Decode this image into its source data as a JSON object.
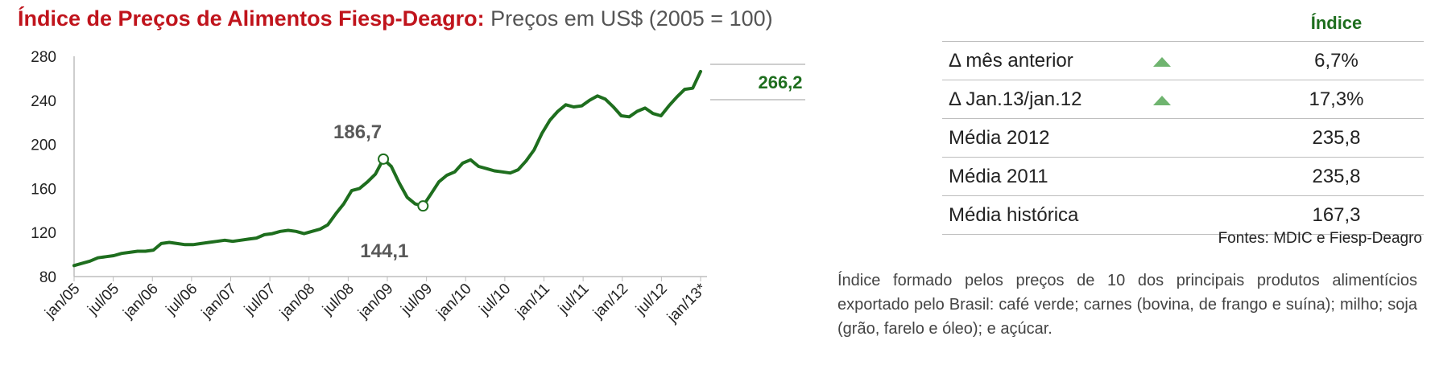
{
  "title": {
    "main": "Índice de Preços de Alimentos Fiesp-Deagro:",
    "sub": "Preços em US$ (2005 = 100)"
  },
  "chart_data": {
    "type": "line",
    "title": "Índice de Preços de Alimentos Fiesp-Deagro: Preços em US$ (2005 = 100)",
    "xlabel": "",
    "ylabel": "",
    "ylim": [
      80,
      280
    ],
    "yticks": [
      80,
      120,
      160,
      200,
      240,
      280
    ],
    "xticks": [
      "jan/05",
      "jul/05",
      "jan/06",
      "jul/06",
      "jan/07",
      "jul/07",
      "jan/08",
      "jul/08",
      "jan/09",
      "jul/09",
      "jan/10",
      "jul/10",
      "jan/11",
      "jul/11",
      "jan/12",
      "jul/12",
      "jan/13*"
    ],
    "grid": false,
    "color": "#1e6e1e",
    "series": [
      {
        "values": [
          90,
          92,
          94,
          97,
          98,
          99,
          101,
          102,
          103,
          103,
          104,
          110,
          111,
          110,
          109,
          109,
          110,
          111,
          112,
          113,
          112,
          113,
          114,
          115,
          118,
          119,
          121,
          122,
          121,
          119,
          121,
          123,
          127,
          137,
          146,
          158,
          160,
          166,
          173,
          186.7,
          180,
          165,
          152,
          146,
          144.1,
          155,
          166,
          172,
          175,
          183,
          186,
          180,
          178,
          176,
          175,
          174,
          177,
          185,
          195,
          210,
          222,
          230,
          236,
          234,
          235,
          240,
          244,
          241,
          234,
          226,
          225,
          230,
          233,
          228,
          226,
          235,
          243,
          250,
          251,
          266.2
        ]
      }
    ],
    "annotations": [
      {
        "label": "186,7",
        "index": 39,
        "value": 186.7
      },
      {
        "label": "144,1",
        "index": 44,
        "value": 144.1
      }
    ],
    "current_value_label": "266,2"
  },
  "stats": {
    "header": "Índice",
    "rows": [
      {
        "label": "Δ mês anterior",
        "value": "6,7%",
        "trend": "up"
      },
      {
        "label": "Δ Jan.13/jan.12",
        "value": "17,3%",
        "trend": "up"
      },
      {
        "label": "Média 2012",
        "value": "235,8",
        "trend": ""
      },
      {
        "label": "Média 2011",
        "value": "235,8",
        "trend": ""
      },
      {
        "label": "Média histórica",
        "value": "167,3",
        "trend": ""
      }
    ]
  },
  "sources": "Fontes: MDIC e Fiesp-Deagro",
  "note": "Índice formado pelos preços de 10 dos principais produtos alimentícios exportado pelo Brasil: café verde; carnes (bovina, de frango e suína); milho; soja (grão, farelo e óleo); e açúcar."
}
